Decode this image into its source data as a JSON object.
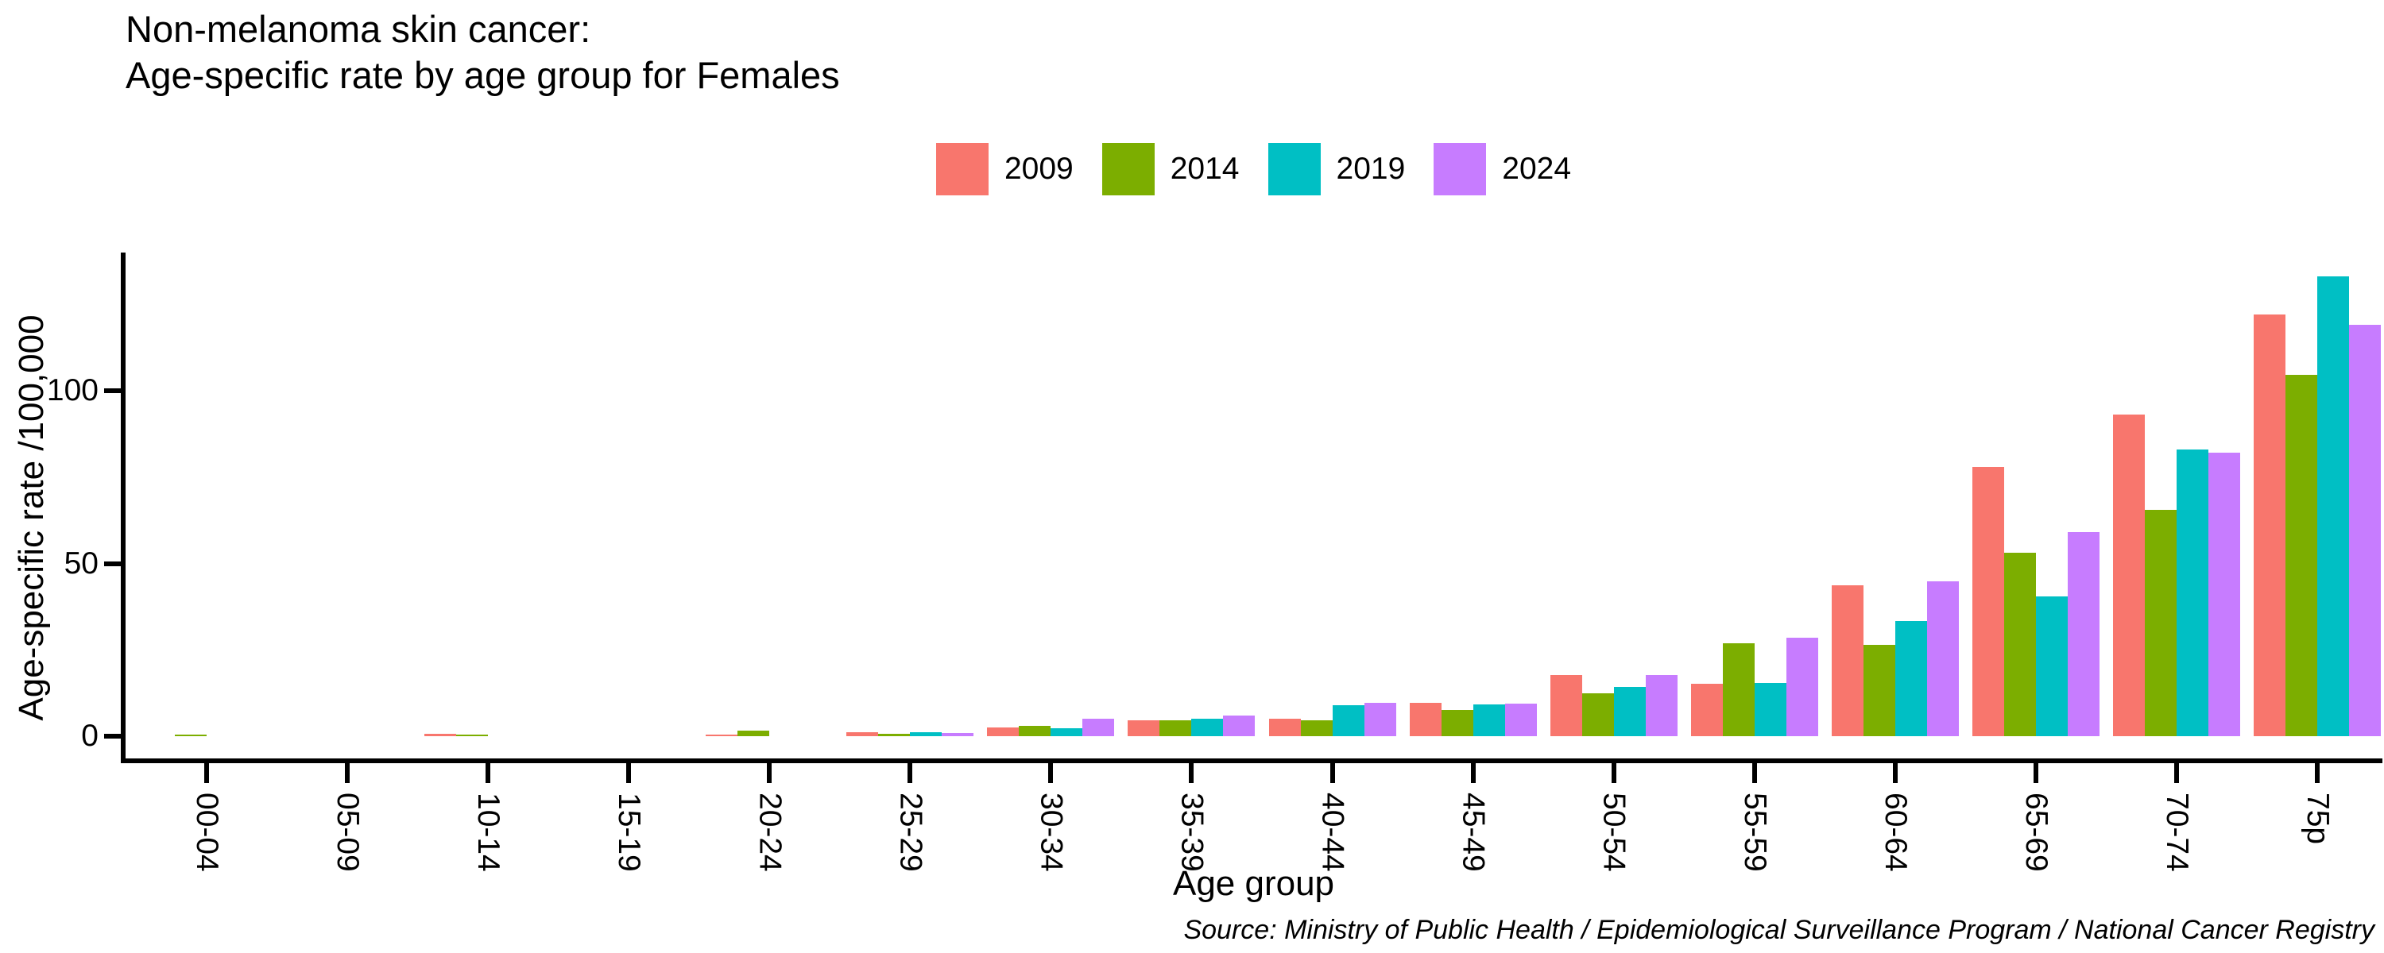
{
  "title": {
    "line1": "Non-melanoma skin cancer:",
    "line2": "Age-specific rate by age group for Females"
  },
  "axes": {
    "y_label": "Age-specific rate /100,000",
    "x_label": "Age group",
    "y_tick_labels": [
      "0",
      "50",
      "100"
    ]
  },
  "caption": "Source: Ministry of Public Health / Epidemiological Surveillance Program / National Cancer Registry",
  "colors": {
    "series_2009": "#F8766D",
    "series_2014": "#7CAE00",
    "series_2019": "#00BFC4",
    "series_2024": "#C77CFF",
    "axis": "#000000",
    "background": "#FFFFFF"
  },
  "chart_data": {
    "type": "bar",
    "title": "Non-melanoma skin cancer: Age-specific rate by age group for Females",
    "xlabel": "Age group",
    "ylabel": "Age-specific rate /100,000",
    "categories": [
      "00-04",
      "05-09",
      "10-14",
      "15-19",
      "20-24",
      "25-29",
      "30-34",
      "35-39",
      "40-44",
      "45-49",
      "50-54",
      "55-59",
      "60-64",
      "65-69",
      "70-74",
      "75p"
    ],
    "series": [
      {
        "name": "2009",
        "color": "#F8766D",
        "values": [
          0,
          0,
          0.8,
          0,
          0.5,
          1.1,
          2.6,
          4.5,
          5.1,
          9.6,
          17.8,
          15.1,
          43.6,
          78.0,
          93.0,
          122.0
        ]
      },
      {
        "name": "2014",
        "color": "#7CAE00",
        "values": [
          0.5,
          0,
          0.4,
          0,
          1.6,
          0.8,
          3.1,
          4.6,
          4.5,
          7.6,
          12.4,
          26.8,
          26.5,
          53.0,
          65.5,
          104.5
        ]
      },
      {
        "name": "2019",
        "color": "#00BFC4",
        "values": [
          0,
          0,
          0,
          0,
          0,
          1.1,
          2.4,
          5.0,
          9.0,
          9.3,
          14.2,
          15.3,
          33.3,
          40.5,
          83.0,
          133.0
        ]
      },
      {
        "name": "2024",
        "color": "#C77CFF",
        "values": [
          0,
          0,
          0,
          0,
          0,
          1.0,
          5.0,
          6.0,
          9.6,
          9.4,
          17.7,
          28.6,
          44.9,
          59.0,
          82.0,
          119.0
        ]
      }
    ],
    "ylim": [
      0,
      139
    ],
    "yticks": [
      0,
      50,
      100
    ],
    "grid": false,
    "legend_position": "top",
    "bar_orientation": "vertical",
    "x_tick_rotation_deg": 90
  }
}
